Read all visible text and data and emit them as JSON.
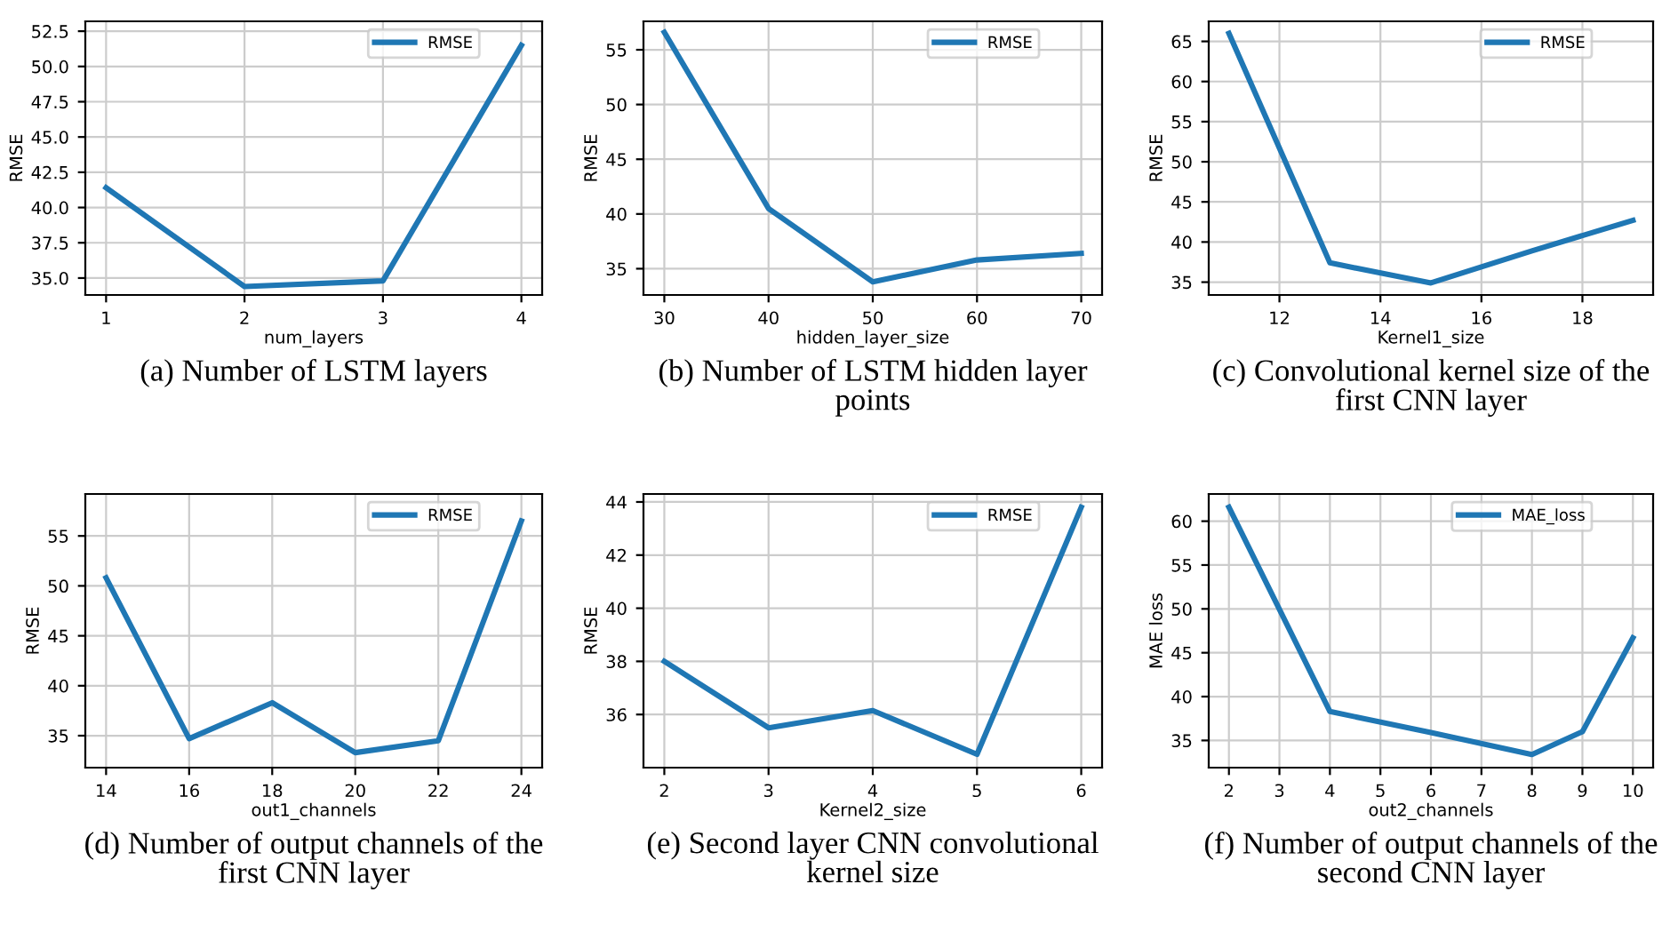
{
  "chart_data": [
    {
      "type": "line",
      "title": "(a) Number of LSTM layers",
      "xlabel": "num_layers",
      "ylabel": "RMSE",
      "x": [
        1,
        2,
        3,
        4
      ],
      "series": [
        {
          "name": "RMSE",
          "color": "#1f77b4",
          "values": [
            41.4,
            34.4,
            34.8,
            51.5
          ]
        }
      ],
      "xlim": [
        0.85,
        4.15
      ],
      "ylim": [
        33.8,
        53.2
      ],
      "xticks": [
        1,
        2,
        3,
        4
      ],
      "yticks": [
        {
          "value": 35,
          "label": "35.0"
        },
        {
          "value": 37.5,
          "label": "37.5"
        },
        {
          "value": 40,
          "label": "40.0"
        },
        {
          "value": 42.5,
          "label": "42.5"
        },
        {
          "value": 45,
          "label": "45.0"
        },
        {
          "value": 47.5,
          "label": "47.5"
        },
        {
          "value": 50,
          "label": "50.0"
        },
        {
          "value": 52.5,
          "label": "52.5"
        }
      ],
      "grid": true,
      "legend": "top right"
    },
    {
      "type": "line",
      "title": "(b) Number of LSTM hidden layer\npoints",
      "xlabel": "hidden_layer_size",
      "ylabel": "RMSE",
      "x": [
        30,
        40,
        50,
        60,
        70
      ],
      "series": [
        {
          "name": "RMSE",
          "color": "#1f77b4",
          "values": [
            56.6,
            40.5,
            33.8,
            35.8,
            36.4
          ]
        }
      ],
      "xlim": [
        28,
        72
      ],
      "ylim": [
        32.6,
        57.6
      ],
      "xticks": [
        30,
        40,
        50,
        60,
        70
      ],
      "yticks": [
        35,
        40,
        45,
        50,
        55
      ],
      "grid": true,
      "legend": "top right"
    },
    {
      "type": "line",
      "title": "(c) Convolutional kernel size of the\nfirst CNN layer",
      "xlabel": "Kernel1_size",
      "ylabel": "RMSE",
      "x": [
        11,
        13,
        15,
        17,
        19
      ],
      "series": [
        {
          "name": "RMSE",
          "color": "#1f77b4",
          "values": [
            66.0,
            37.4,
            34.9,
            38.9,
            42.7
          ]
        }
      ],
      "xlim": [
        10.6,
        19.4
      ],
      "ylim": [
        33.4,
        67.5
      ],
      "xticks": [
        12,
        14,
        16,
        18
      ],
      "yticks": [
        35,
        40,
        45,
        50,
        55,
        60,
        65
      ],
      "grid": true,
      "legend": "top right"
    },
    {
      "type": "line",
      "title": "(d) Number of output channels of the\nfirst CNN layer",
      "xlabel": "out1_channels",
      "ylabel": "RMSE",
      "x": [
        14,
        16,
        18,
        20,
        22,
        24
      ],
      "series": [
        {
          "name": "RMSE",
          "color": "#1f77b4",
          "values": [
            50.8,
            34.7,
            38.3,
            33.3,
            34.5,
            56.5
          ]
        }
      ],
      "xlim": [
        13.5,
        24.5
      ],
      "ylim": [
        31.8,
        59.2
      ],
      "xticks": [
        14,
        16,
        18,
        20,
        22,
        24
      ],
      "yticks": [
        35,
        40,
        45,
        50,
        55
      ],
      "grid": true,
      "legend": "top right"
    },
    {
      "type": "line",
      "title": "(e) Second layer CNN convolutional\nkernel size",
      "xlabel": "Kernel2_size",
      "ylabel": "RMSE",
      "x": [
        2,
        3,
        4,
        5,
        6
      ],
      "series": [
        {
          "name": "RMSE",
          "color": "#1f77b4",
          "values": [
            38.0,
            35.5,
            36.15,
            34.5,
            43.8
          ]
        }
      ],
      "xlim": [
        1.8,
        6.2
      ],
      "ylim": [
        34.0,
        44.3
      ],
      "xticks": [
        2,
        3,
        4,
        5,
        6
      ],
      "yticks": [
        36,
        38,
        40,
        42,
        44
      ],
      "grid": true,
      "legend": "top right"
    },
    {
      "type": "line",
      "title": "(f) Number of output channels of the\nsecond CNN layer",
      "xlabel": "out2_channels",
      "ylabel": "MAE loss",
      "x": [
        2,
        4,
        6,
        8,
        9,
        10
      ],
      "series": [
        {
          "name": "MAE_loss",
          "color": "#1f77b4",
          "values": [
            61.6,
            38.3,
            35.9,
            33.4,
            36.0,
            46.7
          ]
        }
      ],
      "xlim": [
        1.6,
        10.4
      ],
      "ylim": [
        31.9,
        63.1
      ],
      "xticks": [
        2,
        3,
        4,
        5,
        6,
        7,
        8,
        9,
        10
      ],
      "yticks": [
        35,
        40,
        45,
        50,
        55,
        60
      ],
      "grid": true,
      "legend": "top right"
    }
  ]
}
